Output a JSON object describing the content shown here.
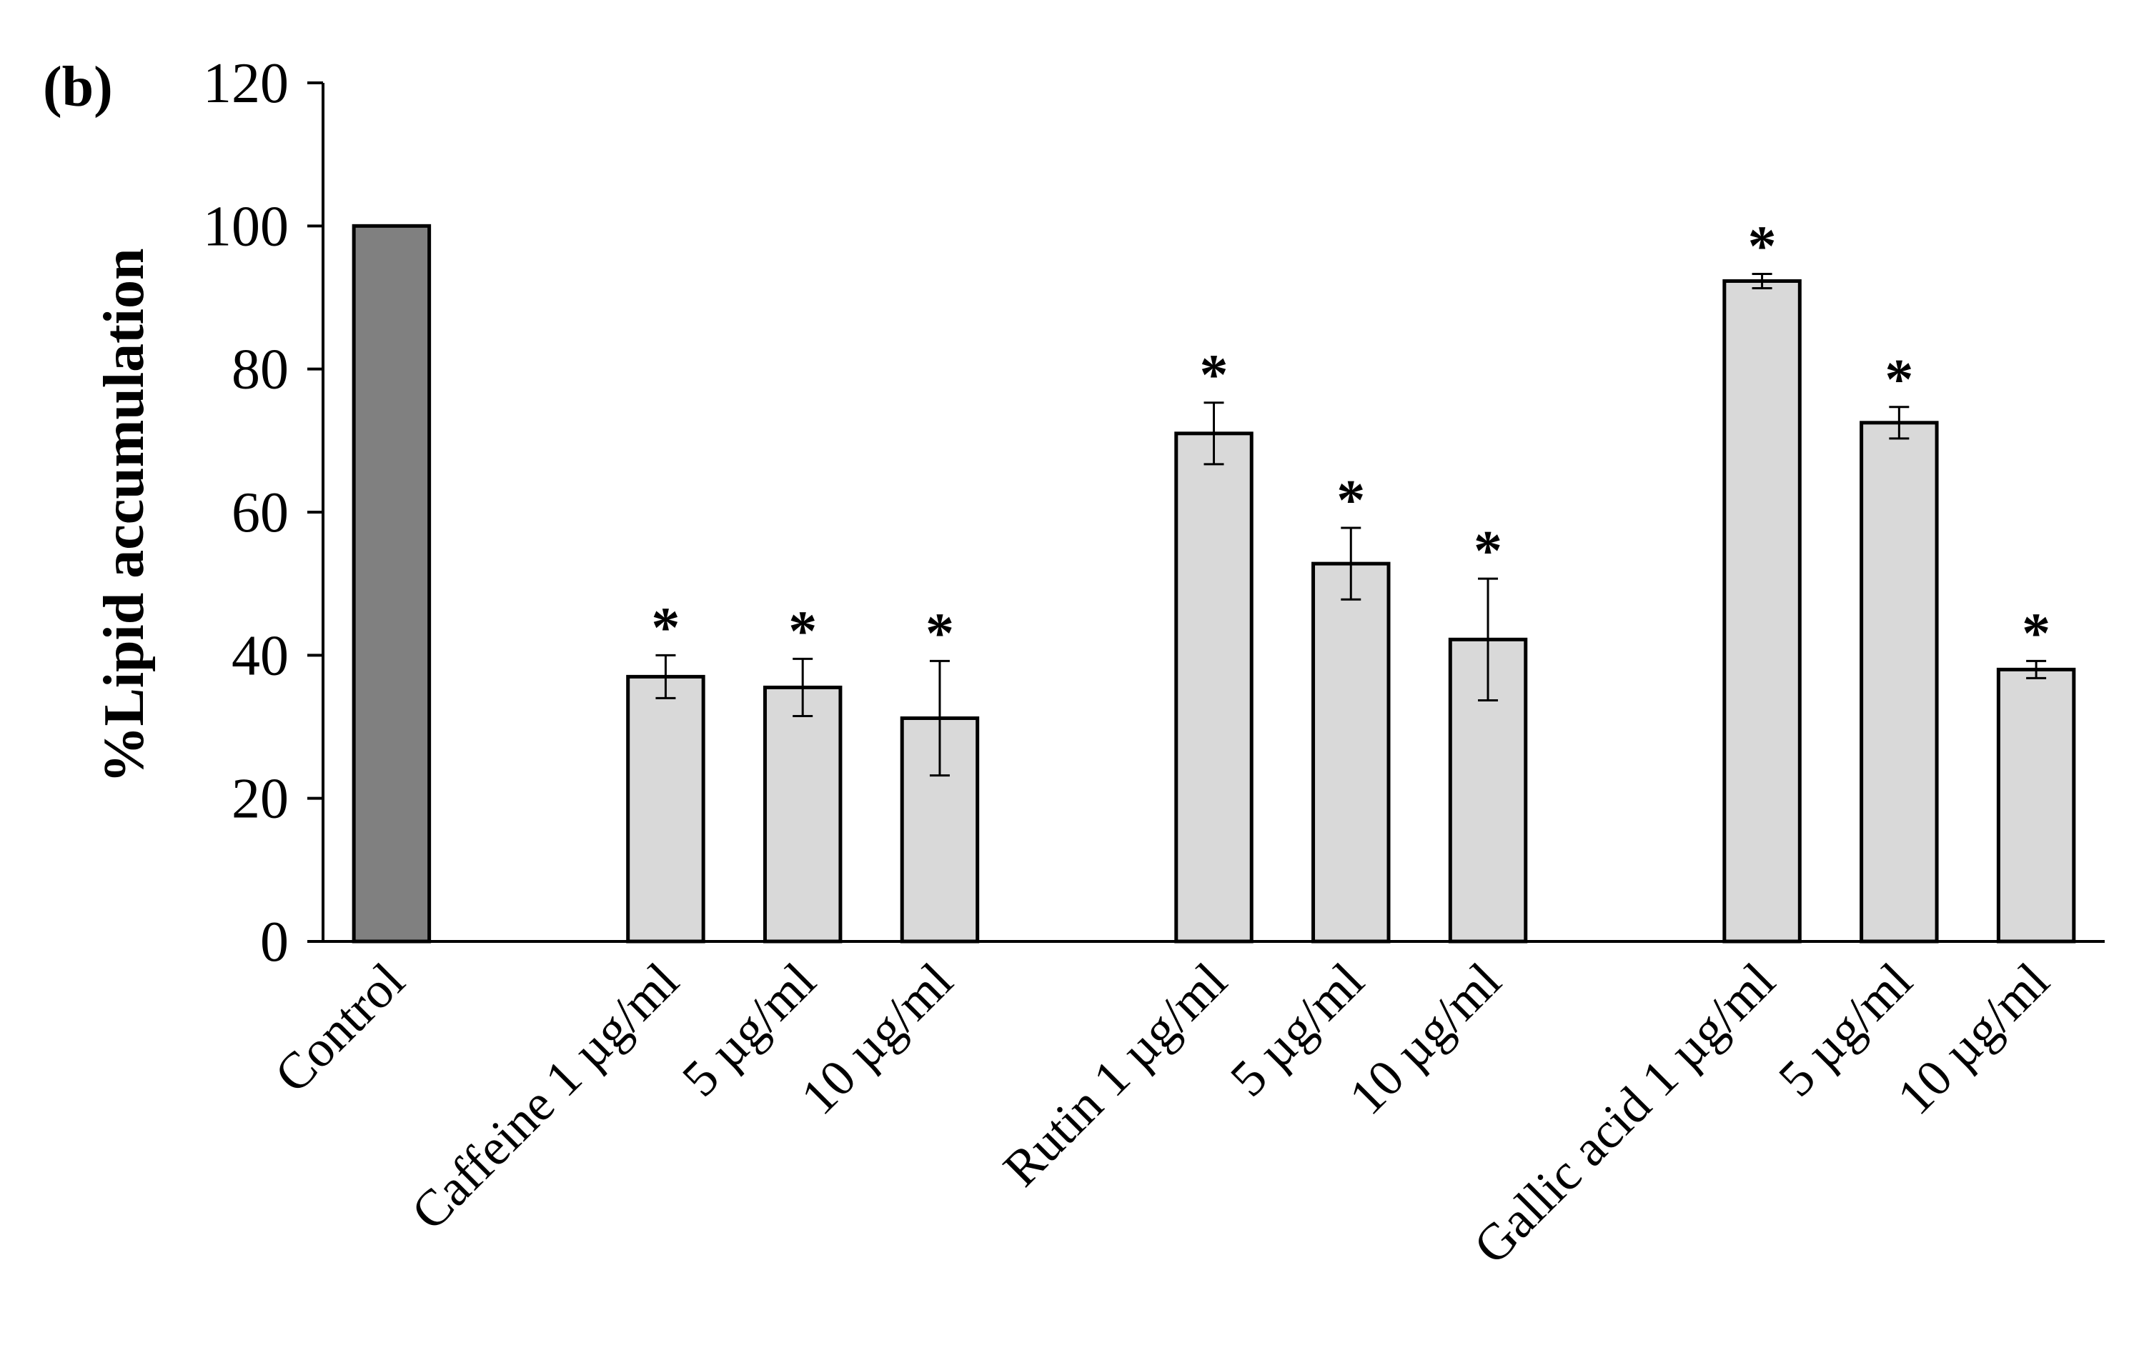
{
  "panel_label": "(b)",
  "chart_data": {
    "type": "bar",
    "title": "",
    "xlabel": "",
    "ylabel": "%Lipid accumulation",
    "ylim": [
      0,
      120
    ],
    "yticks": [
      0,
      20,
      40,
      60,
      80,
      100,
      120
    ],
    "grid": false,
    "legend": "none",
    "bar_colors": {
      "control": "#808080",
      "treatment": "#d9d9d9",
      "outline": "#000000"
    },
    "categories": [
      "Control",
      "Caffeine 1 µg/ml",
      "5 µg/ml",
      "10 µg/ml",
      "Rutin 1 µg/ml",
      "5 µg/ml",
      "10 µg/ml",
      "Gallic acid 1 µg/ml",
      "5 µg/ml",
      "10 µg/ml"
    ],
    "values": [
      100,
      37,
      35.5,
      31.2,
      71,
      52.8,
      42.2,
      92.3,
      72.5,
      38
    ],
    "errors": [
      0,
      3,
      4,
      8,
      4.3,
      5,
      8.5,
      1,
      2.2,
      1.2
    ],
    "significance": [
      "",
      "*",
      "*",
      "*",
      "*",
      "*",
      "*",
      "*",
      "*",
      "*"
    ],
    "slot_index": [
      0,
      2,
      3,
      4,
      6,
      7,
      8,
      10,
      11,
      12
    ],
    "slot_count": 13
  }
}
